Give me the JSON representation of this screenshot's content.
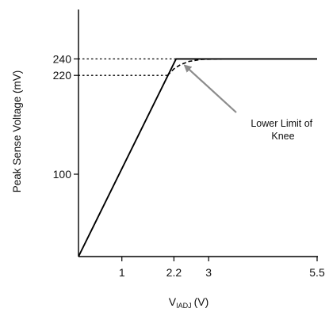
{
  "chart_data": {
    "type": "line",
    "ylabel": "Peak Sense Voltage (mV)",
    "xlabel_main": "V",
    "xlabel_sub": "IADJ",
    "xlabel_unit": "(V)",
    "x_ticks": [
      {
        "value": 1,
        "label": "1"
      },
      {
        "value": 2.2,
        "label": "2.2"
      },
      {
        "value": 3,
        "label": "3"
      },
      {
        "value": 5.5,
        "label": "5.5"
      }
    ],
    "y_ticks": [
      {
        "value": 100,
        "label": "100"
      },
      {
        "value": 220,
        "label": "220"
      },
      {
        "value": 240,
        "label": "240"
      }
    ],
    "xlim": [
      0,
      5.5
    ],
    "ylim": [
      0,
      300
    ],
    "grid": false,
    "series": [
      {
        "style": "solid",
        "points": [
          [
            0,
            0
          ],
          [
            2.25,
            240
          ],
          [
            5.5,
            240
          ]
        ]
      },
      {
        "style": "dashed",
        "points": [
          [
            2.05,
            220
          ],
          [
            2.2,
            228
          ],
          [
            2.35,
            233
          ],
          [
            2.55,
            237
          ],
          [
            2.85,
            239.5
          ],
          [
            3.3,
            240
          ]
        ]
      }
    ],
    "reference_lines": [
      {
        "y": 240,
        "x_from": 0,
        "x_to": 2.25,
        "style": "dotted"
      },
      {
        "y": 220,
        "x_from": 0,
        "x_to": 2.05,
        "style": "dotted"
      }
    ],
    "annotation": {
      "lines": [
        "Lower Limit of",
        "Knee"
      ],
      "arrow_to": [
        2.45,
        232
      ]
    }
  }
}
